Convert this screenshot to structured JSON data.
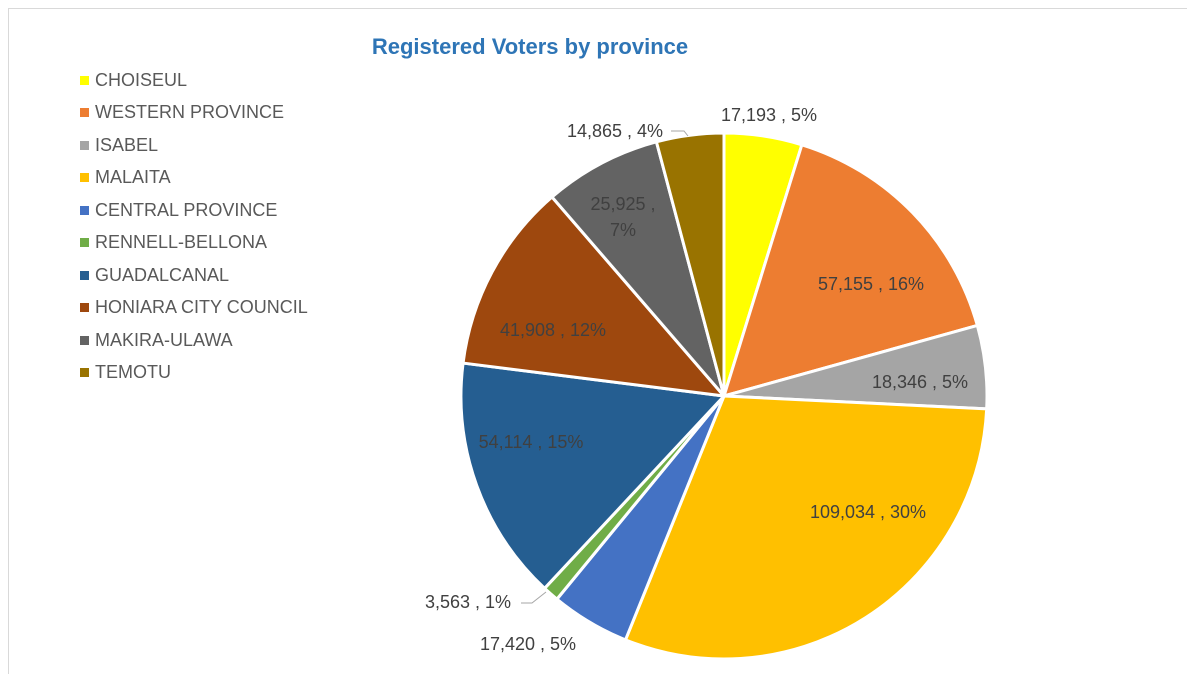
{
  "chart_data": {
    "type": "pie",
    "title": "Registered Voters by province",
    "legend_position": "left",
    "slices": [
      {
        "label": "CHOISEUL",
        "value": 17193,
        "percent": "5%",
        "data_label": "17,193 , 5%",
        "color": "#ffff00"
      },
      {
        "label": "WESTERN PROVINCE",
        "value": 57155,
        "percent": "16%",
        "data_label": "57,155 , 16%",
        "color": "#ed7d31"
      },
      {
        "label": "ISABEL",
        "value": 18346,
        "percent": "5%",
        "data_label": "18,346 , 5%",
        "color": "#a5a5a5"
      },
      {
        "label": "MALAITA",
        "value": 109034,
        "percent": "30%",
        "data_label": "109,034 , 30%",
        "color": "#ffc000"
      },
      {
        "label": "CENTRAL PROVINCE",
        "value": 17420,
        "percent": "5%",
        "data_label": "17,420 , 5%",
        "color": "#4472c4"
      },
      {
        "label": "RENNELL-BELLONA",
        "value": 3563,
        "percent": "1%",
        "data_label": "3,563 , 1%",
        "color": "#70ad47"
      },
      {
        "label": "GUADALCANAL",
        "value": 54114,
        "percent": "15%",
        "data_label": "54,114 , 15%",
        "color": "#255e91"
      },
      {
        "label": "HONIARA CITY COUNCIL",
        "value": 41908,
        "percent": "12%",
        "data_label": "41,908 , 12%",
        "color": "#9e480e"
      },
      {
        "label": "MAKIRA-ULAWA",
        "value": 25925,
        "percent": "7%",
        "data_label": "25,925 , 7%",
        "color": "#636363"
      },
      {
        "label": "TEMOTU",
        "value": 14865,
        "percent": "4%",
        "data_label": "14,865 , 4%",
        "color": "#997300"
      }
    ]
  }
}
